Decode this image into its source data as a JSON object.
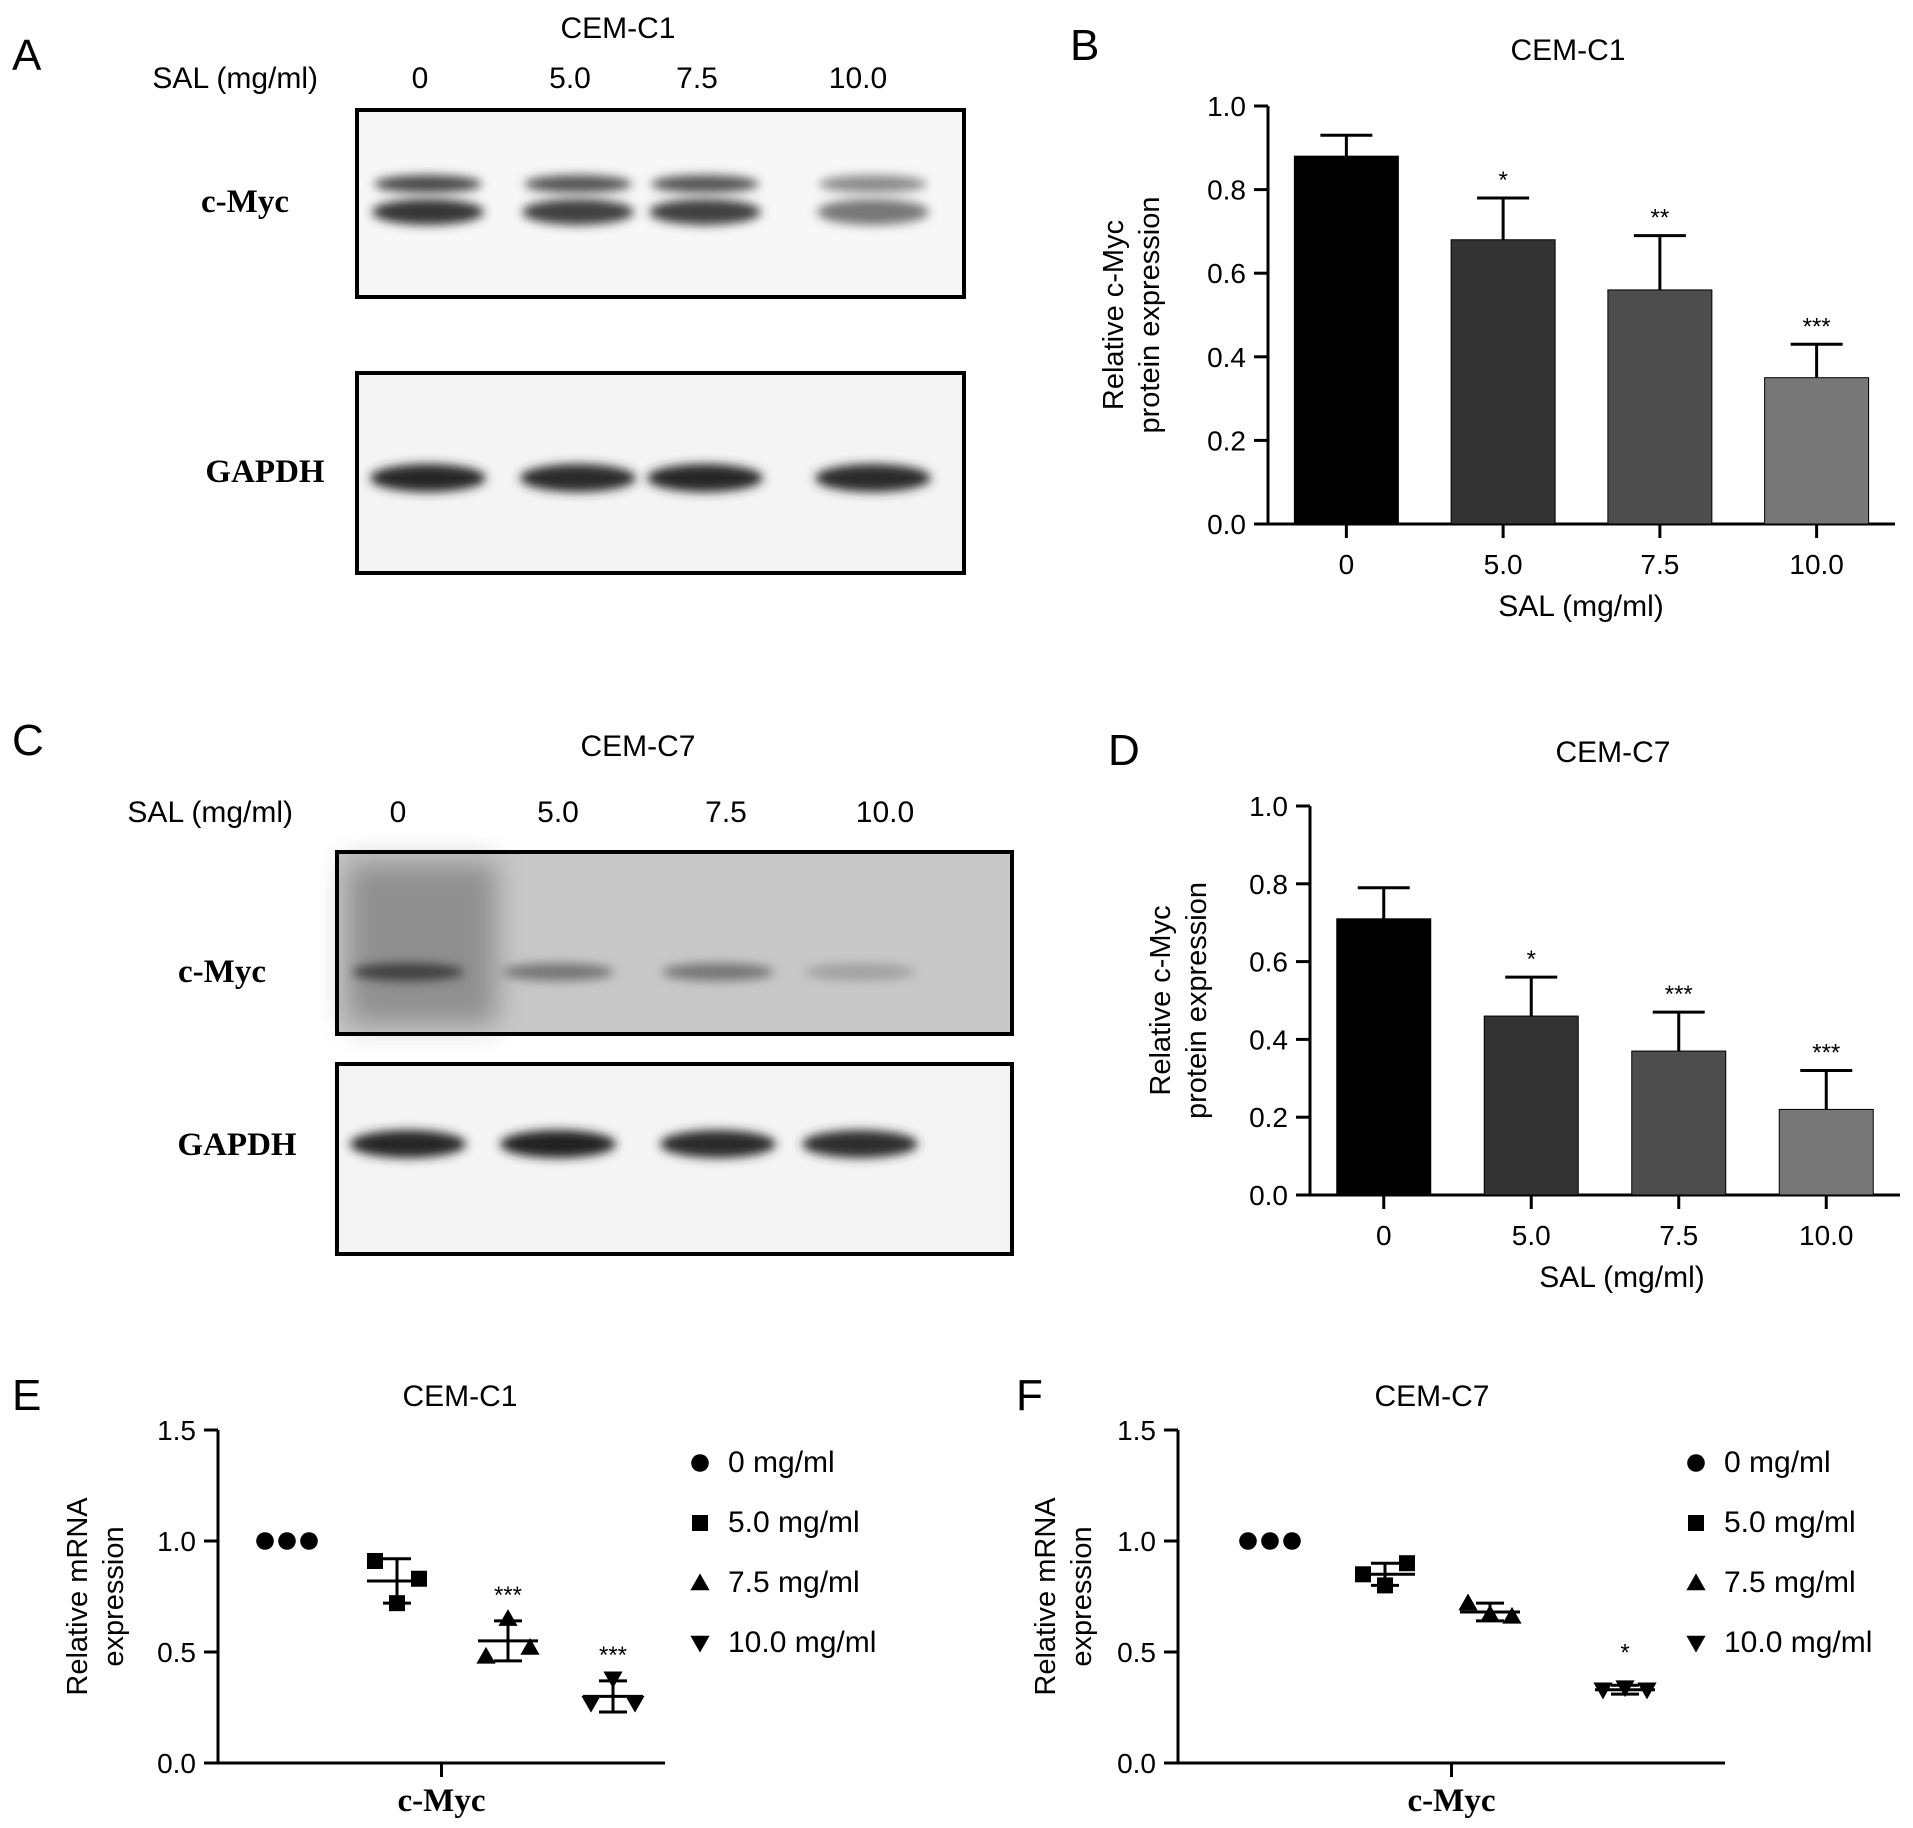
{
  "figure": {
    "panel_letters": [
      "A",
      "B",
      "C",
      "D",
      "E",
      "F"
    ],
    "blots": [
      {
        "title": "CEM-C1",
        "dose_label": "SAL (mg/ml)",
        "doses": [
          "0",
          "5.0",
          "7.5",
          "10.0"
        ],
        "top_label": "c-Myc",
        "bottom_label": "GAPDH",
        "myc_intensity": [
          0.85,
          0.8,
          0.8,
          0.55
        ],
        "gapdh_intensity": [
          0.9,
          0.88,
          0.9,
          0.88
        ]
      },
      {
        "title": "CEM-C7",
        "dose_label": "SAL (mg/ml)",
        "doses": [
          "0",
          "5.0",
          "7.5",
          "10.0"
        ],
        "top_label": "c-Myc",
        "bottom_label": "GAPDH",
        "myc_intensity": [
          0.8,
          0.55,
          0.55,
          0.35
        ],
        "gapdh_intensity": [
          0.9,
          0.92,
          0.88,
          0.86
        ]
      }
    ],
    "colors": {
      "bar_fills": [
        "#000000",
        "#333333",
        "#4d4d4d",
        "#777777"
      ]
    }
  },
  "chart_data": [
    {
      "panel": "B",
      "type": "bar",
      "title": "CEM-C1",
      "xlabel": "SAL (mg/ml)",
      "ylabel_lines": [
        "Relative c-Myc",
        "protein expression"
      ],
      "categories": [
        "0",
        "5.0",
        "7.5",
        "10.0"
      ],
      "values": [
        0.88,
        0.68,
        0.56,
        0.35
      ],
      "errors": [
        0.05,
        0.1,
        0.13,
        0.08
      ],
      "significance": [
        "",
        "*",
        "**",
        "***"
      ],
      "ylim": [
        0,
        1.0
      ],
      "yticks": [
        "0.0",
        "0.2",
        "0.4",
        "0.6",
        "0.8",
        "1.0"
      ]
    },
    {
      "panel": "D",
      "type": "bar",
      "title": "CEM-C7",
      "xlabel": "SAL (mg/ml)",
      "ylabel_lines": [
        "Relative c-Myc",
        "protein expression"
      ],
      "categories": [
        "0",
        "5.0",
        "7.5",
        "10.0"
      ],
      "values": [
        0.71,
        0.46,
        0.37,
        0.22
      ],
      "errors": [
        0.08,
        0.1,
        0.1,
        0.1
      ],
      "significance": [
        "",
        "*",
        "***",
        "***"
      ],
      "ylim": [
        0,
        1.0
      ],
      "yticks": [
        "0.0",
        "0.2",
        "0.4",
        "0.6",
        "0.8",
        "1.0"
      ]
    },
    {
      "panel": "E",
      "type": "scatter",
      "title": "CEM-C1",
      "xlabel": "c-Myc",
      "ylabel_lines": [
        "Relative mRNA",
        "expression"
      ],
      "ylim": [
        0,
        1.5
      ],
      "yticks": [
        "0.0",
        "0.5",
        "1.0",
        "1.5"
      ],
      "series": [
        {
          "name": "0 mg/ml",
          "marker": "circle",
          "values": [
            1.0,
            1.0,
            1.0
          ],
          "mean": 1.0,
          "sd": 0,
          "sig": ""
        },
        {
          "name": "5.0 mg/ml",
          "marker": "square",
          "values": [
            0.91,
            0.72,
            0.83
          ],
          "mean": 0.82,
          "sd": 0.1,
          "sig": ""
        },
        {
          "name": "7.5 mg/ml",
          "marker": "triangle-up",
          "values": [
            0.48,
            0.65,
            0.52
          ],
          "mean": 0.55,
          "sd": 0.09,
          "sig": "***"
        },
        {
          "name": "10.0 mg/ml",
          "marker": "triangle-down",
          "values": [
            0.27,
            0.38,
            0.27
          ],
          "mean": 0.3,
          "sd": 0.07,
          "sig": "***"
        }
      ]
    },
    {
      "panel": "F",
      "type": "scatter",
      "title": "CEM-C7",
      "xlabel": "c-Myc",
      "ylabel_lines": [
        "Relative mRNA",
        "expression"
      ],
      "ylim": [
        0,
        1.5
      ],
      "yticks": [
        "0.0",
        "0.5",
        "1.0",
        "1.5"
      ],
      "series": [
        {
          "name": "0 mg/ml",
          "marker": "circle",
          "values": [
            1.0,
            1.0,
            1.0
          ],
          "mean": 1.0,
          "sd": 0,
          "sig": ""
        },
        {
          "name": "5.0 mg/ml",
          "marker": "square",
          "values": [
            0.85,
            0.8,
            0.9
          ],
          "mean": 0.85,
          "sd": 0.05,
          "sig": ""
        },
        {
          "name": "7.5 mg/ml",
          "marker": "triangle-up",
          "values": [
            0.72,
            0.67,
            0.66
          ],
          "mean": 0.68,
          "sd": 0.04,
          "sig": ""
        },
        {
          "name": "10.0 mg/ml",
          "marker": "triangle-down",
          "values": [
            0.33,
            0.34,
            0.33
          ],
          "mean": 0.33,
          "sd": 0.02,
          "sig": "*"
        }
      ]
    }
  ]
}
